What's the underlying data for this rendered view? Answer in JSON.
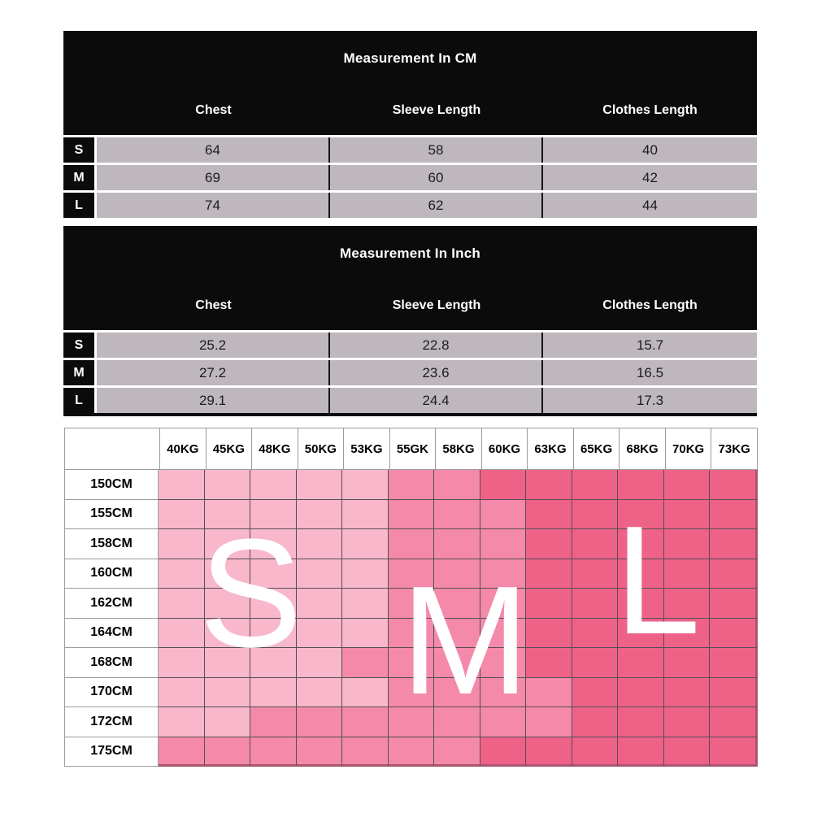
{
  "page": {
    "background": "#ffffff",
    "table_bg": "#0b0b0b",
    "table_cell_bg": "#beb7be"
  },
  "cm_table": {
    "title": "Measurement In CM",
    "columns": [
      "Chest",
      "Sleeve Length",
      "Clothes Length"
    ],
    "rows": [
      {
        "size": "S",
        "values": [
          "64",
          "58",
          "40"
        ]
      },
      {
        "size": "M",
        "values": [
          "69",
          "60",
          "42"
        ]
      },
      {
        "size": "L",
        "values": [
          "74",
          "62",
          "44"
        ]
      }
    ]
  },
  "inch_table": {
    "title": "Measurement In Inch",
    "columns": [
      "Chest",
      "Sleeve Length",
      "Clothes Length"
    ],
    "rows": [
      {
        "size": "S",
        "values": [
          "25.2",
          "22.8",
          "15.7"
        ]
      },
      {
        "size": "M",
        "values": [
          "27.2",
          "23.6",
          "16.5"
        ]
      },
      {
        "size": "L",
        "values": [
          "29.1",
          "24.4",
          "17.3"
        ]
      }
    ]
  },
  "chart_data": {
    "type": "heatmap",
    "x_labels": [
      "40KG",
      "45KG",
      "48KG",
      "50KG",
      "53KG",
      "55GK",
      "58KG",
      "60KG",
      "63KG",
      "65KG",
      "68KG",
      "70KG",
      "73KG"
    ],
    "y_labels": [
      "150CM",
      "155CM",
      "158CM",
      "160CM",
      "162CM",
      "164CM",
      "168CM",
      "170CM",
      "172CM",
      "175CM"
    ],
    "size_letters": [
      "S",
      "M",
      "L"
    ],
    "colors": {
      "S": "#f8b7ca",
      "M": "#f489a9",
      "L": "#ee6288"
    },
    "grid_line_color": "#554f57",
    "outer_edge_color": "#aa5470",
    "matrix": [
      [
        "S",
        "S",
        "S",
        "S",
        "S",
        "M",
        "M",
        "L",
        "L",
        "L",
        "L",
        "L",
        "L"
      ],
      [
        "S",
        "S",
        "S",
        "S",
        "S",
        "M",
        "M",
        "M",
        "L",
        "L",
        "L",
        "L",
        "L"
      ],
      [
        "S",
        "S",
        "S",
        "S",
        "S",
        "M",
        "M",
        "M",
        "L",
        "L",
        "L",
        "L",
        "L"
      ],
      [
        "S",
        "S",
        "S",
        "S",
        "S",
        "M",
        "M",
        "M",
        "L",
        "L",
        "L",
        "L",
        "L"
      ],
      [
        "S",
        "S",
        "S",
        "S",
        "S",
        "M",
        "M",
        "M",
        "L",
        "L",
        "L",
        "L",
        "L"
      ],
      [
        "S",
        "S",
        "S",
        "S",
        "S",
        "M",
        "M",
        "M",
        "L",
        "L",
        "L",
        "L",
        "L"
      ],
      [
        "S",
        "S",
        "S",
        "S",
        "M",
        "M",
        "M",
        "M",
        "L",
        "L",
        "L",
        "L",
        "L"
      ],
      [
        "S",
        "S",
        "S",
        "S",
        "S",
        "M",
        "M",
        "M",
        "M",
        "L",
        "L",
        "L",
        "L"
      ],
      [
        "S",
        "S",
        "M",
        "M",
        "M",
        "M",
        "M",
        "M",
        "M",
        "L",
        "L",
        "L",
        "L"
      ],
      [
        "M",
        "M",
        "M",
        "M",
        "M",
        "M",
        "M",
        "L",
        "L",
        "L",
        "L",
        "L",
        "L"
      ]
    ]
  }
}
